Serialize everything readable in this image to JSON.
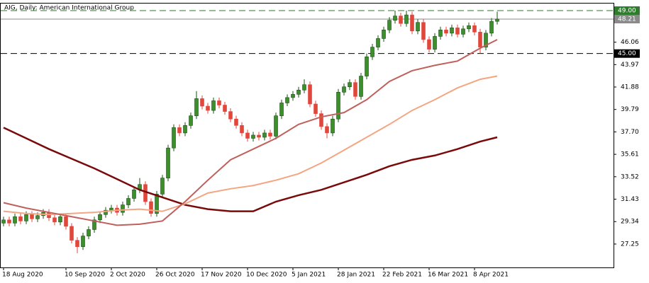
{
  "chart_data": {
    "type": "candlestick",
    "title": "AIG, Daily:  American International Group",
    "categories": [
      "18 Aug 2020",
      null,
      null,
      null,
      null,
      null,
      null,
      null,
      null,
      null,
      null,
      "10 Sep 2020",
      null,
      null,
      null,
      null,
      null,
      null,
      null,
      "2 Oct 2020",
      null,
      null,
      null,
      null,
      null,
      null,
      null,
      "26 Oct 2020",
      null,
      null,
      null,
      null,
      null,
      null,
      null,
      "17 Nov 2020",
      null,
      null,
      null,
      null,
      null,
      null,
      null,
      "10 Dec 2020",
      null,
      null,
      null,
      null,
      null,
      null,
      null,
      "5 Jan 2021",
      null,
      null,
      null,
      null,
      null,
      null,
      null,
      "28 Jan 2021",
      null,
      null,
      null,
      null,
      null,
      null,
      null,
      "22 Feb 2021",
      null,
      null,
      null,
      null,
      null,
      null,
      null,
      "16 Mar 2021",
      null,
      null,
      null,
      null,
      null,
      null,
      null,
      "8 Apr 2021",
      null,
      null,
      null,
      null
    ],
    "open": [
      29.2,
      29.5,
      29.2,
      29.8,
      29.4,
      30.0,
      29.6,
      29.9,
      30.2,
      29.7,
      29.3,
      29.8,
      28.9,
      27.6,
      27.0,
      28.0,
      28.6,
      29.5,
      30.0,
      30.4,
      30.6,
      30.2,
      30.9,
      31.5,
      32.3,
      32.8,
      31.2,
      30.1,
      31.9,
      33.4,
      36.2,
      38.1,
      37.6,
      38.3,
      39.2,
      40.8,
      40.1,
      39.7,
      40.6,
      40.2,
      39.6,
      38.9,
      38.3,
      37.6,
      37.1,
      37.4,
      37.2,
      37.6,
      37.3,
      39.2,
      40.4,
      40.9,
      41.2,
      41.6,
      42.1,
      40.3,
      39.4,
      38.2,
      37.6,
      38.9,
      41.4,
      41.9,
      42.3,
      41.0,
      42.9,
      44.7,
      45.6,
      46.4,
      47.2,
      48.1,
      48.5,
      47.8,
      48.6,
      47.1,
      47.9,
      46.3,
      45.4,
      46.6,
      47.2,
      46.9,
      47.4,
      46.8,
      47.3,
      47.6,
      47.0,
      45.6,
      46.9,
      48.0
    ],
    "high": [
      29.8,
      29.8,
      30.1,
      30.1,
      30.3,
      30.3,
      30.2,
      30.5,
      30.5,
      30.0,
      30.1,
      30.1,
      29.2,
      27.9,
      28.3,
      28.9,
      29.8,
      30.3,
      30.7,
      30.9,
      30.9,
      31.2,
      31.8,
      32.6,
      33.4,
      33.1,
      31.5,
      32.2,
      33.7,
      36.5,
      38.4,
      38.4,
      38.6,
      39.5,
      41.5,
      41.1,
      40.4,
      40.9,
      40.9,
      40.5,
      39.9,
      39.2,
      38.6,
      37.9,
      37.7,
      37.7,
      37.9,
      37.9,
      39.5,
      40.7,
      41.2,
      41.5,
      41.9,
      42.6,
      42.4,
      40.6,
      39.7,
      38.5,
      39.2,
      41.7,
      42.2,
      42.6,
      42.6,
      43.2,
      45.0,
      45.9,
      46.7,
      47.5,
      48.4,
      49.0,
      48.8,
      49.0,
      48.9,
      48.2,
      48.2,
      46.6,
      46.9,
      47.5,
      47.5,
      47.7,
      47.7,
      47.6,
      47.9,
      47.9,
      47.3,
      47.2,
      48.3,
      48.9
    ],
    "low": [
      28.9,
      28.9,
      28.9,
      29.1,
      29.1,
      29.3,
      29.3,
      29.6,
      29.4,
      29.0,
      29.0,
      28.6,
      27.3,
      26.4,
      26.7,
      27.7,
      28.3,
      29.2,
      29.7,
      30.1,
      29.9,
      29.9,
      30.6,
      31.2,
      32.0,
      30.9,
      29.8,
      29.8,
      31.6,
      33.1,
      35.9,
      37.3,
      37.3,
      38.0,
      38.9,
      39.8,
      39.4,
      39.4,
      39.9,
      39.3,
      38.6,
      38.0,
      37.3,
      36.8,
      36.8,
      36.9,
      36.9,
      37.0,
      37.0,
      38.9,
      40.1,
      40.6,
      40.9,
      41.3,
      40.0,
      39.1,
      37.9,
      37.1,
      37.3,
      38.6,
      41.1,
      41.6,
      40.7,
      40.7,
      42.6,
      44.4,
      45.3,
      46.1,
      46.9,
      47.8,
      47.5,
      47.5,
      46.8,
      46.8,
      46.0,
      45.1,
      45.1,
      46.3,
      46.6,
      46.6,
      46.5,
      46.5,
      47.0,
      46.7,
      45.0,
      45.3,
      46.6,
      47.7
    ],
    "close": [
      29.5,
      29.2,
      29.8,
      29.4,
      30.0,
      29.6,
      29.9,
      30.2,
      29.7,
      29.3,
      29.8,
      28.9,
      27.6,
      27.0,
      28.0,
      28.6,
      29.5,
      30.0,
      30.4,
      30.6,
      30.2,
      30.9,
      31.5,
      32.3,
      32.8,
      31.2,
      30.1,
      31.9,
      33.4,
      36.2,
      38.1,
      37.6,
      38.3,
      39.2,
      40.8,
      40.1,
      39.7,
      40.6,
      40.2,
      39.6,
      38.9,
      38.3,
      37.6,
      37.1,
      37.4,
      37.2,
      37.6,
      37.3,
      39.2,
      40.4,
      40.9,
      41.2,
      41.6,
      42.1,
      40.3,
      39.4,
      38.2,
      37.6,
      38.9,
      41.4,
      41.9,
      42.3,
      41.0,
      42.9,
      44.7,
      45.6,
      46.4,
      47.2,
      48.1,
      48.5,
      47.8,
      48.6,
      47.1,
      47.9,
      46.3,
      45.4,
      46.6,
      47.2,
      46.9,
      47.4,
      46.8,
      47.3,
      47.6,
      47.0,
      45.6,
      46.9,
      48.0,
      48.21
    ],
    "up_color": "#3c8f2c",
    "down_color": "#e2473c",
    "lines": [
      {
        "color": "#7a0a0a",
        "width": 2.5,
        "x": [
          0,
          4,
          8,
          12,
          16,
          20,
          24,
          28,
          32,
          36,
          40,
          44,
          48,
          52,
          56,
          60,
          64,
          68,
          72,
          76,
          80,
          84,
          87
        ],
        "values": [
          38.1,
          37.1,
          36.1,
          35.2,
          34.3,
          33.3,
          32.3,
          31.6,
          30.9,
          30.5,
          30.3,
          30.3,
          31.2,
          31.8,
          32.3,
          33.0,
          33.7,
          34.5,
          35.1,
          35.5,
          36.1,
          36.8,
          37.2
        ]
      },
      {
        "color": "#f4a582",
        "width": 2,
        "x": [
          0,
          4,
          8,
          12,
          16,
          20,
          24,
          28,
          32,
          36,
          40,
          44,
          48,
          52,
          56,
          60,
          64,
          68,
          72,
          76,
          80,
          84,
          87
        ],
        "values": [
          30.3,
          30.1,
          30.0,
          30.1,
          30.2,
          30.4,
          30.5,
          30.3,
          31.0,
          32.0,
          32.4,
          32.7,
          33.2,
          33.8,
          34.8,
          36.0,
          37.2,
          38.4,
          39.7,
          40.7,
          41.8,
          42.6,
          42.9
        ]
      },
      {
        "color": "#c0605c",
        "width": 2,
        "x": [
          0,
          4,
          8,
          12,
          16,
          20,
          24,
          28,
          32,
          36,
          40,
          44,
          48,
          52,
          56,
          60,
          64,
          68,
          72,
          76,
          80,
          84,
          87
        ],
        "values": [
          31.1,
          30.6,
          30.2,
          29.8,
          29.4,
          29.0,
          29.1,
          29.4,
          31.2,
          33.2,
          35.1,
          36.1,
          37.1,
          38.4,
          39.1,
          39.5,
          40.7,
          42.4,
          43.4,
          43.9,
          44.3,
          45.5,
          46.3
        ]
      }
    ],
    "levels": [
      {
        "value": 49,
        "label": "49.00",
        "dashed": true,
        "color": "#2d7d2d"
      },
      {
        "value": 48.21,
        "label": "48.21",
        "dashed": false,
        "color": "#8a8a8a"
      },
      {
        "value": 45,
        "label": "45.00",
        "dashed": true,
        "color": "#000000"
      }
    ],
    "ylim": [
      25.07,
      49.66
    ],
    "yticks": [
      {
        "value": 46.06,
        "label": "46.06"
      },
      43.97,
      41.88,
      39.79,
      {
        "value": 37.7,
        "label": "37.70"
      },
      35.61,
      33.52,
      31.43,
      29.34,
      27.25
    ]
  }
}
